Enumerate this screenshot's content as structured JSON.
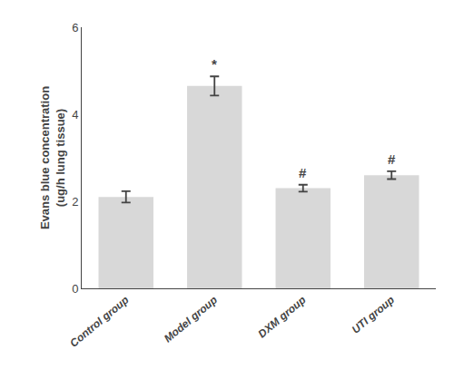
{
  "chart_data": {
    "type": "bar",
    "categories": [
      "Control group",
      "Model group",
      "DXM group",
      "UTI group"
    ],
    "values": [
      2.1,
      4.65,
      2.3,
      2.6
    ],
    "errors": [
      0.13,
      0.22,
      0.08,
      0.09
    ],
    "color": "#d8d8d8",
    "ylabel": "Evans blue concentration\n(ug/h lung tissue)",
    "ylim": [
      0,
      6
    ],
    "yticks": [
      0,
      2,
      4,
      6
    ],
    "grid": false,
    "annotations": [
      {
        "category": "Model group",
        "text": "*"
      },
      {
        "category": "DXM group",
        "text": "#"
      },
      {
        "category": "UTI group",
        "text": "#"
      }
    ]
  }
}
